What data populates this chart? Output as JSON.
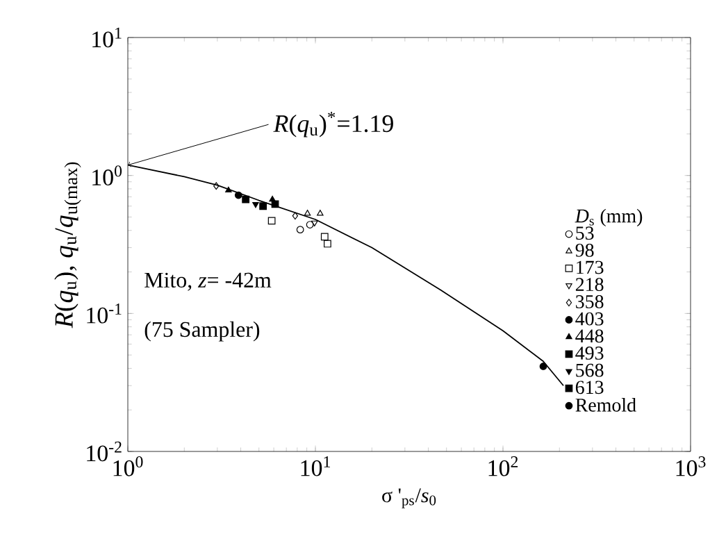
{
  "chart_data": {
    "type": "scatter",
    "xlabel": "σ '$_{ps}$/*s*$_{0}$",
    "ylabel": "*R*(*q*$_{u}$), *q*$_{u}$/*q*$_{u(max)}$",
    "legend_title": "*D*$_{s}$ (mm)",
    "log": "xy",
    "legend": "right",
    "grid": false,
    "xlim": [
      1,
      1000
    ],
    "ylim": [
      0.01,
      10
    ],
    "xticks": [
      {
        "value": 1,
        "label": "10$^{0}$"
      },
      {
        "value": 10,
        "label": "10$^{1}$"
      },
      {
        "value": 100,
        "label": "10$^{2}$"
      },
      {
        "value": 1000,
        "label": "10$^{3}$"
      }
    ],
    "yticks": [
      {
        "value": 0.01,
        "label": "10$^{-2}$"
      },
      {
        "value": 0.1,
        "label": "10$^{-1}$"
      },
      {
        "value": 1,
        "label": "10$^{0}$"
      },
      {
        "value": 10,
        "label": "10$^{1}$"
      }
    ],
    "annotations": [
      {
        "text": "*R*(*q*$_{u}$)$^{*}$=1.19",
        "x": 1,
        "y": 1.19
      },
      "Mito, *z*= -42m",
      "(75 Sampler)"
    ],
    "series": [
      {
        "type": "line",
        "color": "#000000",
        "line_style": "solid",
        "marker": "none",
        "x": [
          1,
          2,
          3,
          5,
          10,
          20,
          46.5,
          100,
          164,
          210
        ],
        "values": [
          1.19,
          0.98,
          0.85,
          0.66,
          0.48,
          0.3,
          0.148,
          0.075,
          0.045,
          0.03
        ]
      },
      {
        "name": "53",
        "color": "#000000",
        "marker": "circle-open",
        "x": [
          8.3,
          9.35
        ],
        "values": [
          0.405,
          0.44
        ]
      },
      {
        "name": "98",
        "color": "#000000",
        "marker": "triangle-open",
        "x": [
          9.07,
          10.6
        ],
        "values": [
          0.53,
          0.53
        ]
      },
      {
        "name": "173",
        "color": "#000000",
        "marker": "square-open",
        "x": [
          5.85,
          11.2,
          11.6
        ],
        "values": [
          0.47,
          0.36,
          0.32
        ]
      },
      {
        "name": "218",
        "color": "#000000",
        "marker": "triangle-down-open",
        "x": [
          9.9
        ],
        "values": [
          0.455
        ]
      },
      {
        "name": "358",
        "color": "#000000",
        "marker": "diamond-open",
        "x": [
          2.96,
          7.8
        ],
        "values": [
          0.84,
          0.51
        ]
      },
      {
        "name": "403",
        "color": "#000000",
        "marker": "circle",
        "x": [
          3.89
        ],
        "values": [
          0.72
        ]
      },
      {
        "name": "448",
        "color": "#000000",
        "marker": "triangle",
        "x": [
          3.44,
          5.9
        ],
        "values": [
          0.78,
          0.67
        ]
      },
      {
        "name": "493",
        "color": "#000000",
        "marker": "square",
        "x": [
          4.25
        ],
        "values": [
          0.67
        ]
      },
      {
        "name": "568",
        "color": "#000000",
        "marker": "triangle-down",
        "x": [
          4.8
        ],
        "values": [
          0.62
        ]
      },
      {
        "name": "613",
        "color": "#000000",
        "marker": "square",
        "x": [
          5.26,
          6.1
        ],
        "values": [
          0.6,
          0.62
        ]
      },
      {
        "name": "Remold",
        "color": "#000000",
        "marker": "circle",
        "x": [
          164
        ],
        "values": [
          0.0414
        ]
      }
    ]
  }
}
